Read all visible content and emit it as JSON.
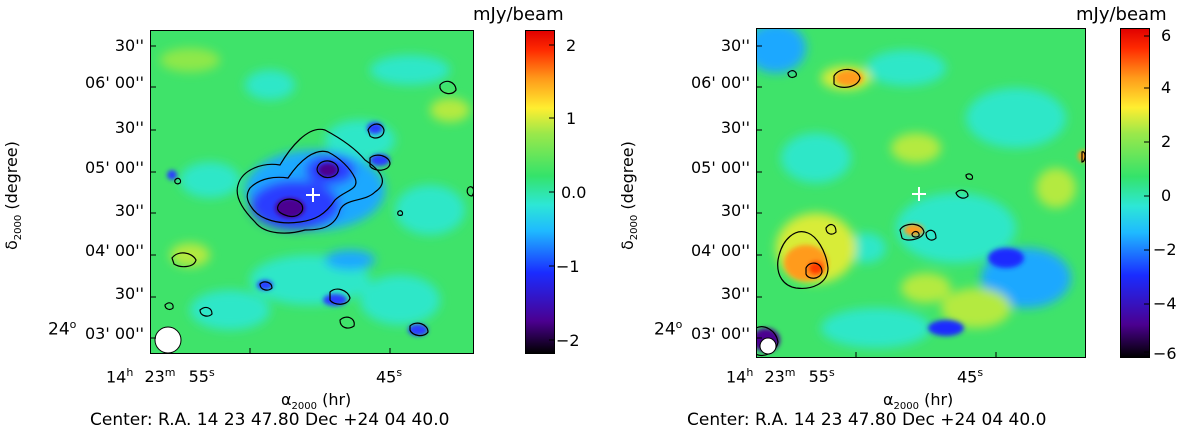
{
  "panels": [
    {
      "ytick_labels": [
        "30''",
        "06' 00''",
        "30''",
        "05' 00''",
        "30''",
        "04' 00''",
        "30''",
        "03' 00''"
      ],
      "y_degree_label": "24",
      "ylabel_sym": "δ",
      "ylabel_sub": "2000",
      "ylabel_rest": " (degree)",
      "xtick_h": "14",
      "xtick_m": "23",
      "xtick_s1": "55",
      "xtick_s2": "45",
      "xlabel_sym": "α",
      "xlabel_sub": "2000",
      "xlabel_rest": " (hr)",
      "colorbar_unit": "mJy/beam",
      "colorbar_ticks": [
        "2",
        "1",
        "0.0",
        "−1",
        "−2"
      ],
      "colorbar_range": [
        -2.3,
        2.3
      ],
      "footer": "Center:  R.A. 14 23 47.80     Dec  +24 04 40.0"
    },
    {
      "ytick_labels": [
        "30''",
        "06' 00''",
        "30''",
        "05' 00''",
        "30''",
        "04' 00''",
        "30''",
        "03' 00''"
      ],
      "y_degree_label": "24",
      "ylabel_sym": "δ",
      "ylabel_sub": "2000",
      "ylabel_rest": " (degree)",
      "xtick_h": "14",
      "xtick_m": "23",
      "xtick_s1": "55",
      "xtick_s2": "45",
      "xlabel_sym": "α",
      "xlabel_sub": "2000",
      "xlabel_rest": " (hr)",
      "colorbar_unit": "mJy/beam",
      "colorbar_ticks": [
        "6",
        "4",
        "2",
        "0",
        "−2",
        "−4",
        "−6"
      ],
      "colorbar_range": [
        -6.3,
        6.3
      ],
      "footer": "Center:  R.A. 14 23 47.80     Dec  +24 04 40.0"
    }
  ],
  "colors": {
    "map_background": "#3fe36a",
    "contour": "#000000",
    "marker": "#ffffff",
    "beam": "#ffffff"
  },
  "colorbar_stops": [
    "#000000",
    "#4b0090",
    "#1a2cff",
    "#1fbaff",
    "#2de7d6",
    "#34e36a",
    "#9ae84a",
    "#ffee30",
    "#ff9b1a",
    "#ff2a00",
    "#e00000"
  ]
}
